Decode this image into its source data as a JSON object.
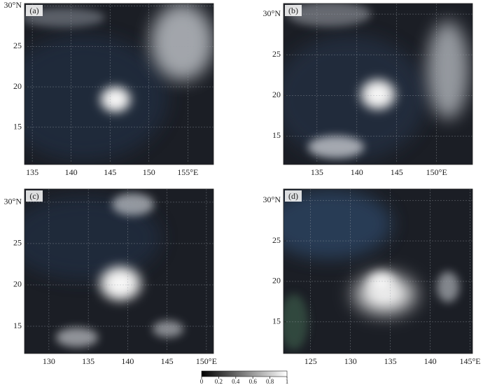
{
  "panels": [
    {
      "label": "(a)",
      "xlim": [
        134,
        158.3
      ],
      "ylim": [
        10.4,
        30.3
      ],
      "xticks": [
        135,
        140,
        145,
        150,
        {
          "value": 155,
          "label": "155°E"
        }
      ],
      "yticks": [
        {
          "value": 30,
          "label": "30°N"
        },
        25,
        20,
        15
      ]
    },
    {
      "label": "(b)",
      "xlim": [
        130.8,
        154.5
      ],
      "ylim": [
        11.5,
        31.3
      ],
      "xticks": [
        135,
        140,
        145,
        {
          "value": 150,
          "label": "150°E"
        }
      ],
      "yticks": [
        {
          "value": 30,
          "label": "30°N"
        },
        25,
        20,
        15
      ]
    },
    {
      "label": "(c)",
      "xlim": [
        126.9,
        150.9
      ],
      "ylim": [
        11.7,
        31.6
      ],
      "xticks": [
        130,
        135,
        140,
        145,
        {
          "value": 150,
          "label": "150°E"
        }
      ],
      "yticks": [
        {
          "value": 30,
          "label": "30°N"
        },
        25,
        20,
        15
      ]
    },
    {
      "label": "(d)",
      "xlim": [
        121.6,
        145.3
      ],
      "ylim": [
        11.1,
        31.4
      ],
      "xticks": [
        125,
        130,
        135,
        140,
        {
          "value": 145,
          "label": "145°E"
        }
      ],
      "yticks": [
        {
          "value": 30,
          "label": "30°N"
        },
        25,
        20,
        15
      ]
    }
  ],
  "colorbar": {
    "lim": [
      0,
      1
    ],
    "ticks": [
      0,
      0.2,
      0.4,
      0.6,
      0.8,
      1
    ]
  }
}
